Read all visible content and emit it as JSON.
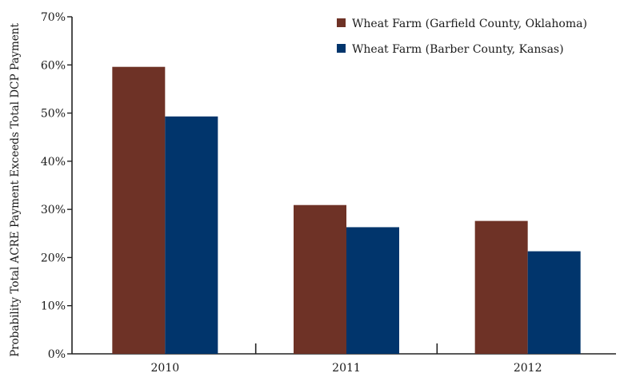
{
  "chart_data": {
    "type": "bar",
    "title": "",
    "xlabel": "",
    "ylabel": "Probability Total ACRE Payment Exceeds Total DCP Payment",
    "categories": [
      "2010",
      "2011",
      "2012"
    ],
    "series": [
      {
        "name": "Wheat Farm (Garfield County, Oklahoma)",
        "color": "#6e3226",
        "values": [
          59.6,
          30.9,
          27.6
        ]
      },
      {
        "name": "Wheat Farm (Barber County, Kansas)",
        "color": "#01356c",
        "values": [
          49.3,
          26.3,
          21.3
        ]
      }
    ],
    "ylim": [
      0,
      70
    ],
    "yticks": [
      0,
      10,
      20,
      30,
      40,
      50,
      60,
      70
    ],
    "ytick_labels": [
      "0%",
      "10%",
      "20%",
      "30%",
      "40%",
      "50%",
      "60%",
      "70%"
    ],
    "grid": false,
    "legend_position": "top-right"
  }
}
